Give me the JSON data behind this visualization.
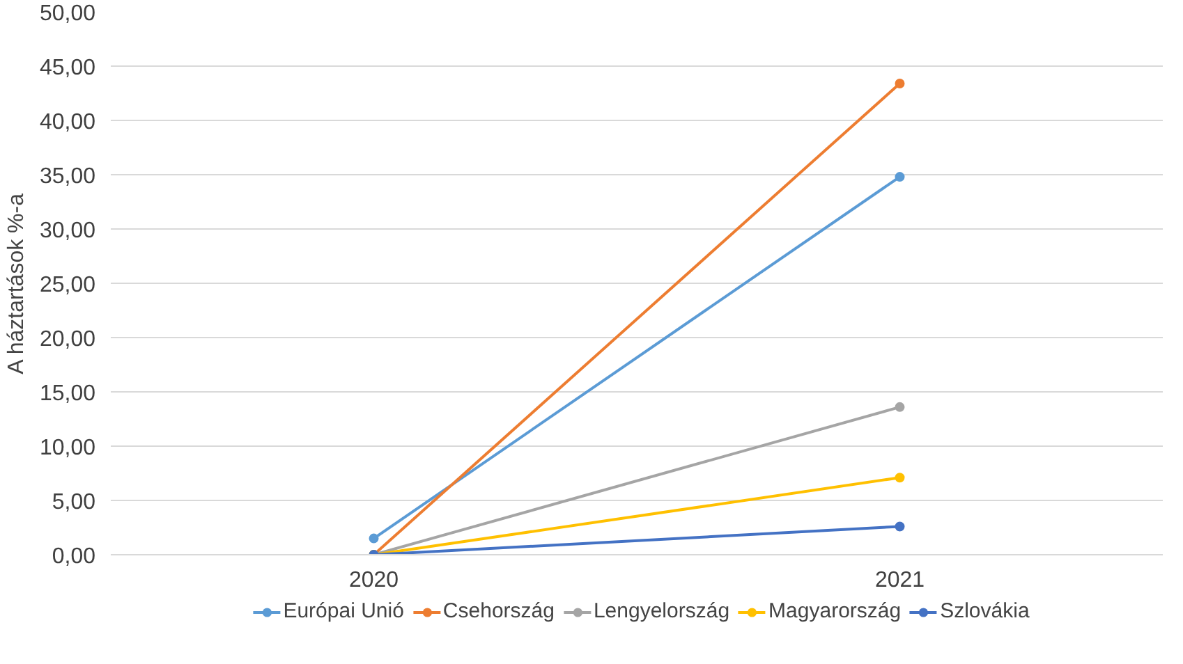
{
  "chart_data": {
    "type": "line",
    "ylabel": "A háztartások %-a",
    "categories": [
      "2020",
      "2021"
    ],
    "series": [
      {
        "name": "Európai Unió",
        "color": "#5b9bd5",
        "values": [
          1.5,
          34.8
        ]
      },
      {
        "name": "Csehország",
        "color": "#ed7d31",
        "values": [
          0,
          43.4
        ]
      },
      {
        "name": "Lengyelország",
        "color": "#a5a5a5",
        "values": [
          0,
          13.6
        ]
      },
      {
        "name": "Magyarország",
        "color": "#ffc000",
        "values": [
          0,
          7.1
        ]
      },
      {
        "name": "Szlovákia",
        "color": "#4472c4",
        "values": [
          0,
          2.6
        ]
      }
    ],
    "ylim": [
      0,
      50
    ],
    "yticks": [
      {
        "value": 0,
        "label": "0,00"
      },
      {
        "value": 5,
        "label": "5,00"
      },
      {
        "value": 10,
        "label": "10,00"
      },
      {
        "value": 15,
        "label": "15,00"
      },
      {
        "value": 20,
        "label": "20,00"
      },
      {
        "value": 25,
        "label": "25,00"
      },
      {
        "value": 30,
        "label": "30,00"
      },
      {
        "value": 35,
        "label": "35,00"
      },
      {
        "value": 40,
        "label": "40,00"
      },
      {
        "value": 45,
        "label": "45,00"
      },
      {
        "value": 50,
        "label": "50,00"
      }
    ],
    "grid": "y",
    "legend": "bottom",
    "marker": "circle",
    "line_style": "solid"
  }
}
